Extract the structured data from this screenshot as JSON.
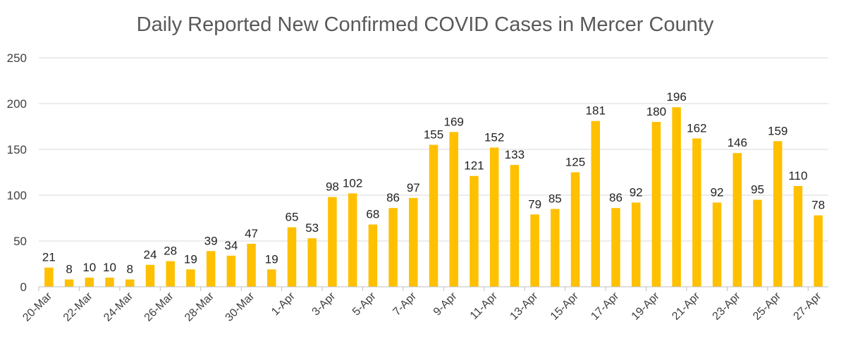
{
  "chart_data": {
    "type": "bar",
    "title": "Daily Reported New Confirmed COVID Cases in Mercer County",
    "xlabel": "",
    "ylabel": "",
    "ylim": [
      0,
      250
    ],
    "yticks": [
      0,
      50,
      100,
      150,
      200,
      250
    ],
    "grid": true,
    "legend": "none",
    "bar_color": "#FFC000",
    "categories": [
      "20-Mar",
      "21-Mar",
      "22-Mar",
      "23-Mar",
      "24-Mar",
      "25-Mar",
      "26-Mar",
      "27-Mar",
      "28-Mar",
      "29-Mar",
      "30-Mar",
      "31-Mar",
      "1-Apr",
      "2-Apr",
      "3-Apr",
      "4-Apr",
      "5-Apr",
      "6-Apr",
      "7-Apr",
      "8-Apr",
      "9-Apr",
      "10-Apr",
      "11-Apr",
      "12-Apr",
      "13-Apr",
      "14-Apr",
      "15-Apr",
      "16-Apr",
      "17-Apr",
      "18-Apr",
      "19-Apr",
      "20-Apr",
      "21-Apr",
      "22-Apr",
      "23-Apr",
      "24-Apr",
      "25-Apr",
      "26-Apr",
      "27-Apr"
    ],
    "tick_labels": [
      "20-Mar",
      "22-Mar",
      "24-Mar",
      "26-Mar",
      "28-Mar",
      "30-Mar",
      "1-Apr",
      "3-Apr",
      "5-Apr",
      "7-Apr",
      "9-Apr",
      "11-Apr",
      "13-Apr",
      "15-Apr",
      "17-Apr",
      "19-Apr",
      "21-Apr",
      "23-Apr",
      "25-Apr",
      "27-Apr"
    ],
    "values": [
      21,
      8,
      10,
      10,
      8,
      24,
      28,
      19,
      39,
      34,
      47,
      19,
      65,
      53,
      98,
      102,
      68,
      86,
      97,
      155,
      169,
      121,
      152,
      133,
      79,
      85,
      125,
      181,
      86,
      92,
      180,
      196,
      162,
      92,
      146,
      95,
      159,
      110,
      78
    ]
  }
}
